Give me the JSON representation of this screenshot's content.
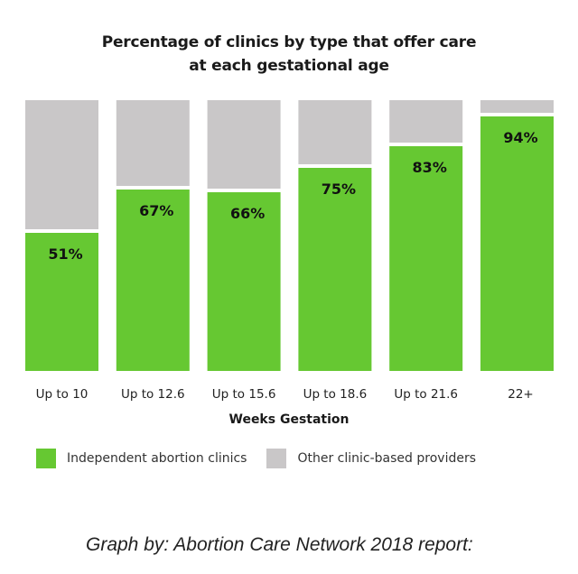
{
  "chart_data": {
    "type": "bar",
    "stacked": true,
    "title": "Percentage of clinics by type that offer care at each gestational age",
    "title_lines": [
      "Percentage of clinics by type that offer care",
      "at each gestational age"
    ],
    "xlabel": "Weeks Gestation",
    "ylabel": "",
    "ylim": [
      0,
      100
    ],
    "grid": false,
    "categories": [
      "Up to 10",
      "Up to 12.6",
      "Up to 15.6",
      "Up to 18.6",
      "Up to 21.6",
      "22+"
    ],
    "series": [
      {
        "name": "Independent abortion clinics",
        "color": "#66c832",
        "values": [
          51,
          67,
          66,
          75,
          83,
          94
        ]
      },
      {
        "name": "Other clinic-based providers",
        "color": "#c9c7c8",
        "values": [
          49,
          33,
          34,
          25,
          17,
          6
        ]
      }
    ],
    "data_labels": [
      "51%",
      "67%",
      "66%",
      "75%",
      "83%",
      "94%"
    ],
    "legend_position": "bottom"
  },
  "caption": "Graph by: Abortion Care Network 2018 report:"
}
